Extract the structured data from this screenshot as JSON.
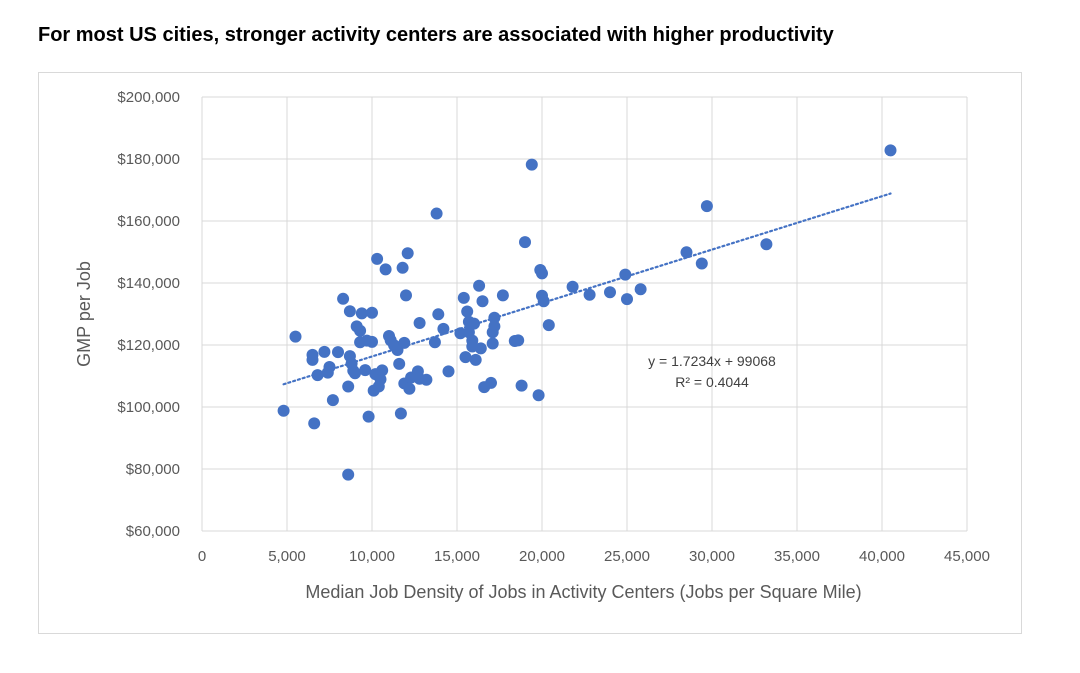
{
  "chart_data": {
    "type": "scatter",
    "title": "For most US cities, stronger activity centers are associated with higher productivity",
    "xlabel": "Median Job Density of Jobs in Activity Centers (Jobs per Square Mile)",
    "ylabel": "GMP per Job",
    "xlim": [
      0,
      45000
    ],
    "ylim": [
      60000,
      200000
    ],
    "x_ticks": [
      0,
      5000,
      10000,
      15000,
      20000,
      25000,
      30000,
      35000,
      40000,
      45000
    ],
    "x_tick_labels": [
      "0",
      "5,000",
      "10,000",
      "15,000",
      "20,000",
      "25,000",
      "30,000",
      "35,000",
      "40,000",
      "45,000"
    ],
    "y_ticks": [
      60000,
      80000,
      100000,
      120000,
      140000,
      160000,
      180000,
      200000
    ],
    "y_tick_labels": [
      "$60,000",
      "$80,000",
      "$100,000",
      "$120,000",
      "$140,000",
      "$160,000",
      "$180,000",
      "$200,000"
    ],
    "grid": true,
    "marker_color": "#4472c4",
    "trendline": {
      "type": "linear",
      "slope": 1.7234,
      "intercept": 99068,
      "x_range": [
        4800,
        40500
      ],
      "color": "#4472c4",
      "equation_label": "y = 1.7234x + 99068",
      "r2_label": "R² = 0.4044"
    },
    "points": [
      {
        "x": 4800,
        "y": 98800
      },
      {
        "x": 5500,
        "y": 122700
      },
      {
        "x": 6500,
        "y": 116800
      },
      {
        "x": 6500,
        "y": 115200
      },
      {
        "x": 6600,
        "y": 94700
      },
      {
        "x": 6800,
        "y": 110300
      },
      {
        "x": 7200,
        "y": 117800
      },
      {
        "x": 7400,
        "y": 111100
      },
      {
        "x": 7500,
        "y": 112900
      },
      {
        "x": 7700,
        "y": 102200
      },
      {
        "x": 8000,
        "y": 117700
      },
      {
        "x": 8300,
        "y": 134900
      },
      {
        "x": 8600,
        "y": 78200
      },
      {
        "x": 8600,
        "y": 106600
      },
      {
        "x": 8700,
        "y": 116400
      },
      {
        "x": 8700,
        "y": 130900
      },
      {
        "x": 8800,
        "y": 114000
      },
      {
        "x": 8900,
        "y": 111700
      },
      {
        "x": 9000,
        "y": 110900
      },
      {
        "x": 9100,
        "y": 126000
      },
      {
        "x": 9300,
        "y": 124600
      },
      {
        "x": 9300,
        "y": 120900
      },
      {
        "x": 9400,
        "y": 130200
      },
      {
        "x": 9600,
        "y": 111900
      },
      {
        "x": 9700,
        "y": 121400
      },
      {
        "x": 9800,
        "y": 96900
      },
      {
        "x": 10000,
        "y": 130400
      },
      {
        "x": 10000,
        "y": 121000
      },
      {
        "x": 10100,
        "y": 105300
      },
      {
        "x": 10200,
        "y": 110600
      },
      {
        "x": 10300,
        "y": 147800
      },
      {
        "x": 10400,
        "y": 106600
      },
      {
        "x": 10500,
        "y": 108900
      },
      {
        "x": 10600,
        "y": 111800
      },
      {
        "x": 10800,
        "y": 144400
      },
      {
        "x": 11000,
        "y": 122900
      },
      {
        "x": 11100,
        "y": 121500
      },
      {
        "x": 11300,
        "y": 119900
      },
      {
        "x": 11500,
        "y": 118400
      },
      {
        "x": 11600,
        "y": 113900
      },
      {
        "x": 11700,
        "y": 97900
      },
      {
        "x": 11800,
        "y": 144900
      },
      {
        "x": 11900,
        "y": 120700
      },
      {
        "x": 11900,
        "y": 107600
      },
      {
        "x": 12000,
        "y": 136000
      },
      {
        "x": 12100,
        "y": 149600
      },
      {
        "x": 12200,
        "y": 105900
      },
      {
        "x": 12300,
        "y": 109500
      },
      {
        "x": 12700,
        "y": 111500
      },
      {
        "x": 12800,
        "y": 127100
      },
      {
        "x": 12800,
        "y": 109100
      },
      {
        "x": 13200,
        "y": 108800
      },
      {
        "x": 13700,
        "y": 120900
      },
      {
        "x": 13800,
        "y": 162400
      },
      {
        "x": 13900,
        "y": 129900
      },
      {
        "x": 14200,
        "y": 125200
      },
      {
        "x": 14500,
        "y": 111500
      },
      {
        "x": 15200,
        "y": 123800
      },
      {
        "x": 15400,
        "y": 135200
      },
      {
        "x": 15500,
        "y": 116100
      },
      {
        "x": 15600,
        "y": 130800
      },
      {
        "x": 15700,
        "y": 127500
      },
      {
        "x": 15700,
        "y": 124100
      },
      {
        "x": 15900,
        "y": 121400
      },
      {
        "x": 15900,
        "y": 119500
      },
      {
        "x": 16000,
        "y": 126900
      },
      {
        "x": 16100,
        "y": 115200
      },
      {
        "x": 16300,
        "y": 139100
      },
      {
        "x": 16400,
        "y": 118900
      },
      {
        "x": 16500,
        "y": 134100
      },
      {
        "x": 16600,
        "y": 106400
      },
      {
        "x": 17000,
        "y": 107800
      },
      {
        "x": 17100,
        "y": 120500
      },
      {
        "x": 17100,
        "y": 124100
      },
      {
        "x": 17200,
        "y": 126000
      },
      {
        "x": 17200,
        "y": 128800
      },
      {
        "x": 17700,
        "y": 136000
      },
      {
        "x": 18400,
        "y": 121300
      },
      {
        "x": 18600,
        "y": 121500
      },
      {
        "x": 18800,
        "y": 106900
      },
      {
        "x": 19000,
        "y": 153200
      },
      {
        "x": 19400,
        "y": 178200
      },
      {
        "x": 19800,
        "y": 103800
      },
      {
        "x": 19900,
        "y": 144200
      },
      {
        "x": 20000,
        "y": 143100
      },
      {
        "x": 20000,
        "y": 135900
      },
      {
        "x": 20100,
        "y": 134100
      },
      {
        "x": 20400,
        "y": 126400
      },
      {
        "x": 21800,
        "y": 138800
      },
      {
        "x": 22800,
        "y": 136200
      },
      {
        "x": 24000,
        "y": 137000
      },
      {
        "x": 24900,
        "y": 142700
      },
      {
        "x": 25000,
        "y": 134800
      },
      {
        "x": 25800,
        "y": 138000
      },
      {
        "x": 28500,
        "y": 149900
      },
      {
        "x": 29400,
        "y": 146300
      },
      {
        "x": 29700,
        "y": 164800
      },
      {
        "x": 33200,
        "y": 152500
      },
      {
        "x": 40500,
        "y": 182800
      }
    ]
  }
}
